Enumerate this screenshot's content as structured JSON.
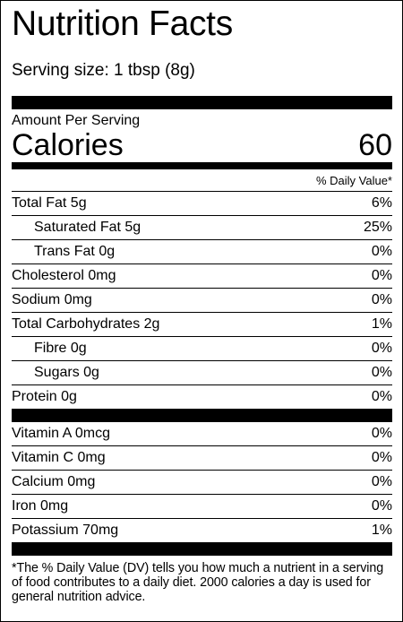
{
  "label": {
    "title": "Nutrition Facts",
    "serving_size": "Serving size: 1 tbsp (8g)",
    "amount_per_serving": "Amount Per Serving",
    "calories_label": "Calories",
    "calories_value": "60",
    "daily_value_header": "% Daily Value*",
    "nutrients": [
      {
        "name": "Total Fat 5g",
        "dv": "6%"
      },
      {
        "name": "Saturated Fat 5g",
        "dv": "25%"
      },
      {
        "name": "Trans Fat 0g",
        "dv": "0%"
      },
      {
        "name": "Cholesterol 0mg",
        "dv": "0%"
      },
      {
        "name": "Sodium 0mg",
        "dv": "0%"
      },
      {
        "name": "Total Carbohydrates 2g",
        "dv": "1%"
      },
      {
        "name": "Fibre 0g",
        "dv": "0%"
      },
      {
        "name": "Sugars 0g",
        "dv": "0%"
      },
      {
        "name": "Protein 0g",
        "dv": "0%"
      }
    ],
    "vitamins": [
      {
        "name": "Vitamin A 0mcg",
        "dv": "0%"
      },
      {
        "name": "Vitamin C 0mg",
        "dv": "0%"
      },
      {
        "name": "Calcium 0mg",
        "dv": "0%"
      },
      {
        "name": "Iron 0mg",
        "dv": "0%"
      },
      {
        "name": "Potassium 70mg",
        "dv": "1%"
      }
    ],
    "footnote": "*The % Daily Value (DV) tells you how much a nutrient in a serving of food contributes to a daily diet. 2000 calories a day is used for general nutrition advice."
  }
}
